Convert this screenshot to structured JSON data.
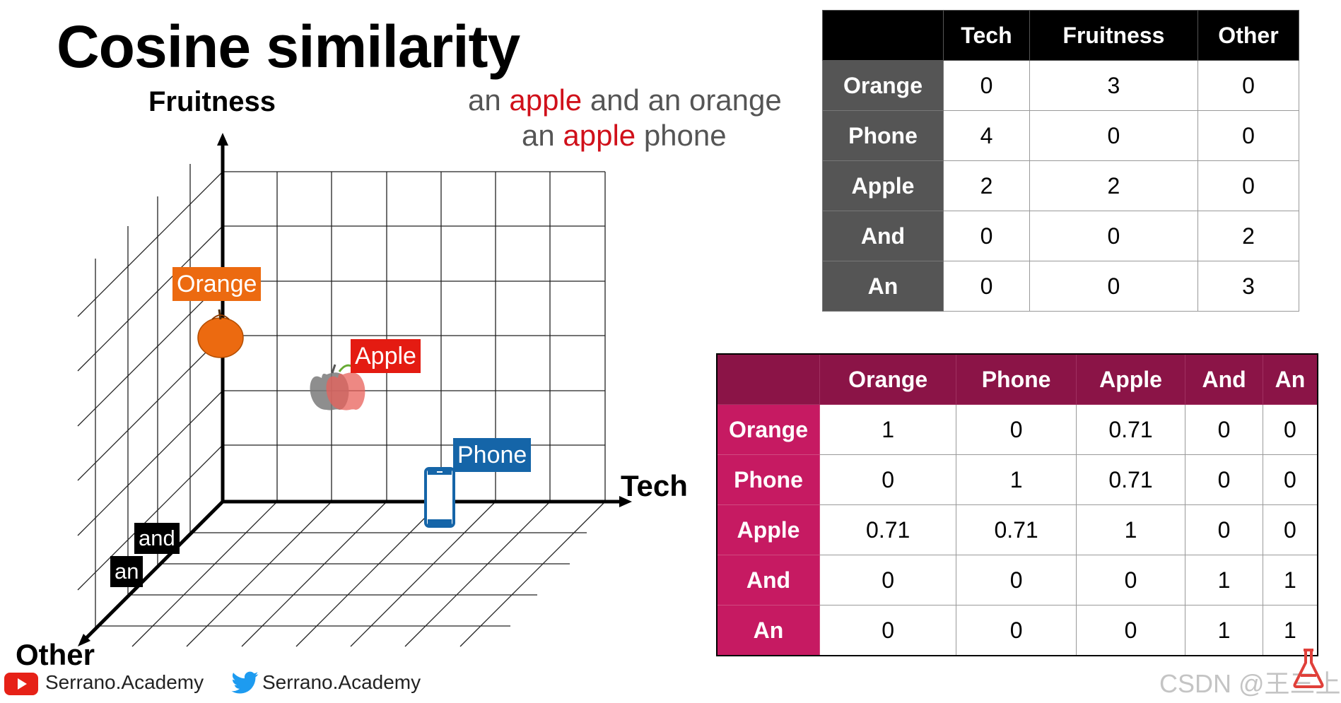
{
  "title": "Cosine similarity",
  "axes": {
    "fruitness": "Fruitness",
    "tech": "Tech",
    "other": "Other"
  },
  "sentences": [
    {
      "before": "an ",
      "highlight": "apple",
      "after": " and an orange"
    },
    {
      "before": "an ",
      "highlight": "apple",
      "after": " phone"
    }
  ],
  "points": {
    "orange": "Orange",
    "apple": "Apple",
    "phone": "Phone",
    "and": "and",
    "an": "an"
  },
  "colors": {
    "orange": "#ec6a10",
    "apple": "#e41b12",
    "phone": "#1565a8",
    "vector_header": "#000000",
    "vector_rowhead": "#555555",
    "sim_header": "#8b1447",
    "sim_rowhead": "#c61a62",
    "sentence_highlight": "#d0101a"
  },
  "vector_table": {
    "headers": [
      "",
      "Tech",
      "Fruitness",
      "Other"
    ],
    "rows": [
      {
        "label": "Orange",
        "values": [
          "0",
          "3",
          "0"
        ]
      },
      {
        "label": "Phone",
        "values": [
          "4",
          "0",
          "0"
        ]
      },
      {
        "label": "Apple",
        "values": [
          "2",
          "2",
          "0"
        ]
      },
      {
        "label": "And",
        "values": [
          "0",
          "0",
          "2"
        ]
      },
      {
        "label": "An",
        "values": [
          "0",
          "0",
          "3"
        ]
      }
    ]
  },
  "similarity_table": {
    "headers": [
      "",
      "Orange",
      "Phone",
      "Apple",
      "And",
      "An"
    ],
    "rows": [
      {
        "label": "Orange",
        "values": [
          "1",
          "0",
          "0.71",
          "0",
          "0"
        ]
      },
      {
        "label": "Phone",
        "values": [
          "0",
          "1",
          "0.71",
          "0",
          "0"
        ]
      },
      {
        "label": "Apple",
        "values": [
          "0.71",
          "0.71",
          "1",
          "0",
          "0"
        ]
      },
      {
        "label": "And",
        "values": [
          "0",
          "0",
          "0",
          "1",
          "1"
        ]
      },
      {
        "label": "An",
        "values": [
          "0",
          "0",
          "0",
          "1",
          "1"
        ]
      }
    ]
  },
  "footer": {
    "youtube_icon": "youtube-icon",
    "youtube_text": "Serrano.Academy",
    "twitter_icon": "twitter-icon",
    "twitter_text": "Serrano.Academy"
  },
  "watermark": "CSDN @王三上"
}
